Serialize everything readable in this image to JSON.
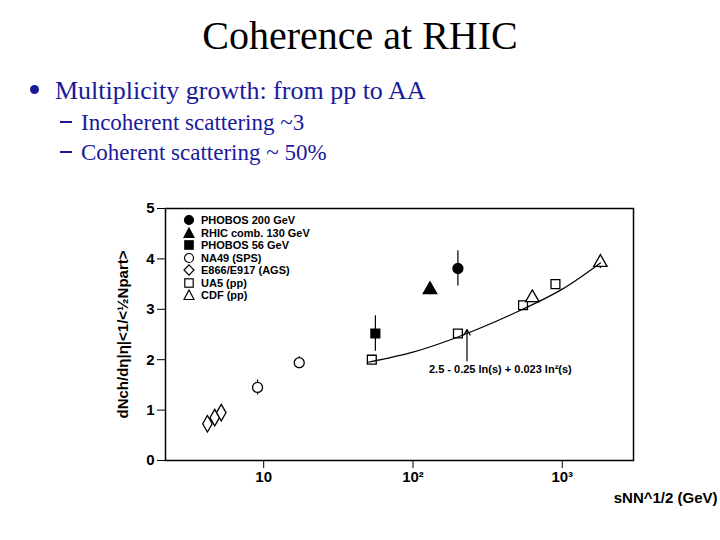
{
  "slide": {
    "title": "Coherence at RHIC",
    "bullets": [
      {
        "text": "Multiplicity growth: from pp to AA",
        "sub": [
          "Incoherent scattering ~3",
          "Coherent scattering ~ 50%"
        ]
      }
    ]
  },
  "chart_data": {
    "type": "scatter",
    "x_label": "sNN^1/2 (GeV)",
    "y_label": "dNch/dη|η|<1/<½Npart>",
    "log": "x",
    "grid": false,
    "legend": "top-left",
    "xlim": [
      2.2,
      3000
    ],
    "xticks": [
      10,
      {
        "value": 100,
        "label": "10²"
      },
      {
        "value": 1000,
        "label": "10³"
      }
    ],
    "ylim": [
      0,
      5
    ],
    "yticks": [
      0,
      1,
      2,
      3,
      4,
      5
    ],
    "series": [
      {
        "name": "PHOBOS 200 GeV",
        "type": "scatter",
        "marker": "filled_circle",
        "color": "#000000",
        "x": [
          200
        ],
        "values": [
          3.81
        ],
        "errors": [
          0.35
        ]
      },
      {
        "name": "RHIC comb. 130 GeV",
        "type": "scatter",
        "marker": "filled_triangle",
        "color": "#000000",
        "x": [
          130
        ],
        "values": [
          3.39
        ],
        "errors": [
          0.1
        ]
      },
      {
        "name": "PHOBOS 56 GeV",
        "type": "scatter",
        "marker": "filled_square",
        "color": "#000000",
        "x": [
          56
        ],
        "values": [
          2.52
        ],
        "errors": [
          0.35
        ]
      },
      {
        "name": "NA49 (SPS)",
        "type": "scatter",
        "marker": "open_circle",
        "color": "#000000",
        "x": [
          9.1,
          17.3
        ],
        "values": [
          1.45,
          1.94
        ],
        "errors": [
          0.15,
          0.12
        ]
      },
      {
        "name": "E866/E917 (AGS)",
        "type": "scatter",
        "marker": "open_diamond",
        "color": "#000000",
        "x": [
          4.2,
          4.7,
          5.2
        ],
        "values": [
          0.73,
          0.85,
          0.95
        ],
        "errors": [
          0.1,
          0.1,
          0.1
        ]
      },
      {
        "name": "UA5 (pp)",
        "type": "scatter",
        "marker": "open_square",
        "color": "#000000",
        "x": [
          53,
          200,
          546,
          900
        ],
        "values": [
          2.0,
          2.52,
          3.08,
          3.5
        ],
        "errors": [
          0.07,
          0.07,
          0.07,
          0.07
        ]
      },
      {
        "name": "CDF (pp)",
        "type": "scatter",
        "marker": "open_triangle",
        "color": "#000000",
        "x": [
          630,
          1800
        ],
        "values": [
          3.23,
          3.93
        ],
        "errors": [
          0.1,
          0.12
        ]
      },
      {
        "type": "line",
        "line_style": "solid",
        "color": "#000000",
        "x": [
          50,
          100,
          200,
          500,
          1000,
          1800
        ],
        "values": [
          1.95,
          2.15,
          2.45,
          2.95,
          3.4,
          3.92
        ]
      }
    ],
    "annotations": [
      {
        "text": "2.5 - 0.25 ln(s) + 0.023 ln²(s)",
        "x": 385,
        "y": 1.8,
        "arrow_x": 230,
        "arrow_y": 2.6
      }
    ]
  }
}
